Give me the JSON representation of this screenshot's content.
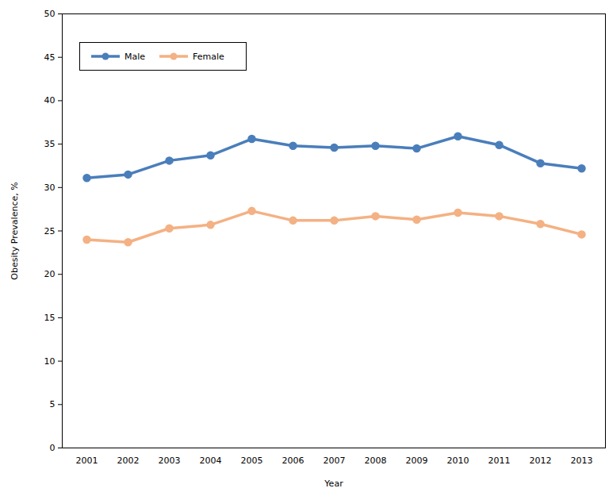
{
  "chart_data": {
    "type": "line",
    "x_label": "Year",
    "y_label": "Obesity Prevalence, %",
    "categories": [
      "2001",
      "2002",
      "2003",
      "2004",
      "2005",
      "2006",
      "2007",
      "2008",
      "2009",
      "2010",
      "2011",
      "2012",
      "2013"
    ],
    "series": [
      {
        "name": "Male",
        "color": "#4a7ebb",
        "marker": "circle",
        "values": [
          31.1,
          31.5,
          33.1,
          33.7,
          35.6,
          34.8,
          34.6,
          34.8,
          34.5,
          35.9,
          34.9,
          32.8,
          32.2
        ]
      },
      {
        "name": "Female",
        "color": "#f4b183",
        "marker": "circle",
        "values": [
          24.0,
          23.7,
          25.3,
          25.7,
          27.3,
          26.2,
          26.2,
          26.7,
          26.3,
          27.1,
          26.7,
          25.8,
          24.6
        ]
      }
    ],
    "ylim": [
      0,
      50
    ],
    "yticks": [
      0,
      5,
      10,
      15,
      20,
      25,
      30,
      35,
      40,
      45,
      50
    ],
    "legend": "top-left",
    "grid": false
  }
}
